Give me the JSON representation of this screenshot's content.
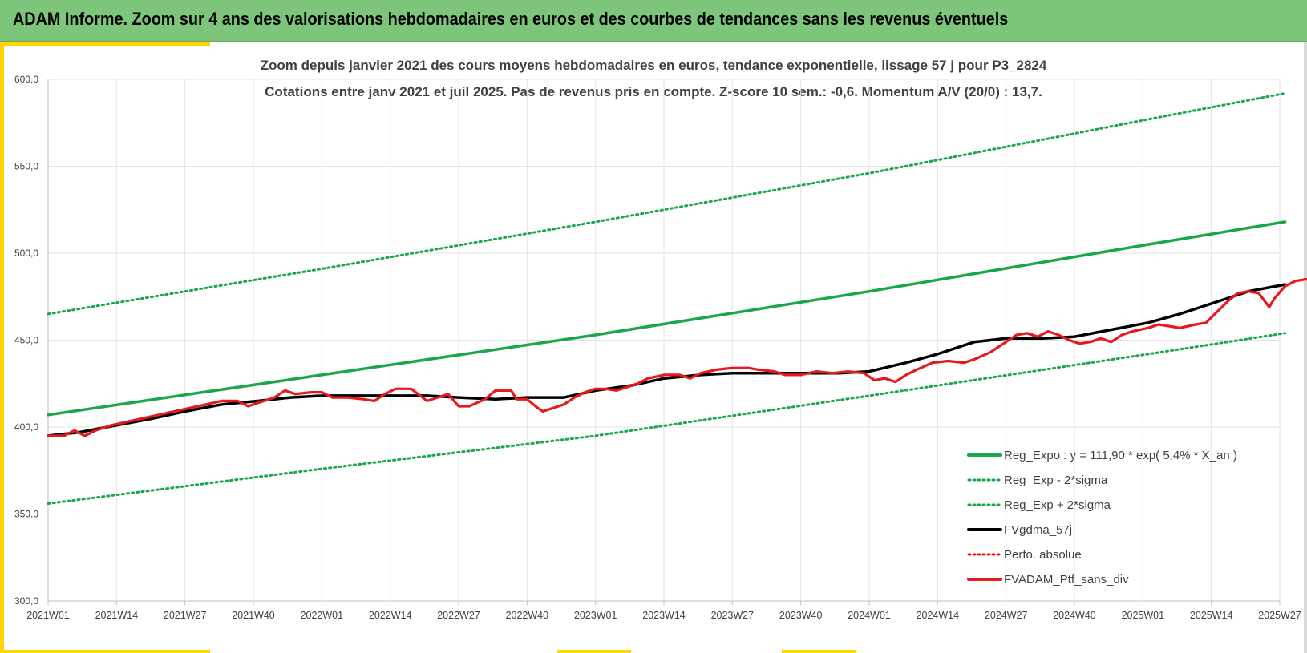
{
  "header": {
    "title": "ADAM Informe. Zoom sur 4 ans des valorisations hebdomadaires en euros et des courbes de tendances sans les revenus éventuels"
  },
  "colors": {
    "header_bg": "#7dc57a",
    "accent": "#ffd400",
    "green": "#1aa64a",
    "black": "#000000",
    "red": "#e8191d",
    "grid": "#e3e3e3"
  },
  "chart_data": {
    "type": "line",
    "title": "Zoom depuis janvier 2021 des cours moyens hebdomadaires  en euros, tendance exponentielle, lissage 57 j pour P3_2824",
    "subtitle": "Cotations entre janv 2021 et juil 2025. Pas de revenus pris en compte. Z-score 10 sem.: -0,6. Momentum A/V (20/0) : 13,7.",
    "xlabel": "",
    "ylabel": "",
    "ylim": [
      300,
      600
    ],
    "yticks": [
      "300,0",
      "350,0",
      "400,0",
      "450,0",
      "500,0",
      "550,0",
      "600,0"
    ],
    "x_tick_labels": [
      "2021W01",
      "2021W14",
      "2021W27",
      "2021W40",
      "2022W01",
      "2022W14",
      "2022W27",
      "2022W40",
      "2023W01",
      "2023W14",
      "2023W27",
      "2023W40",
      "2024W01",
      "2024W14",
      "2024W27",
      "2024W40",
      "2025W01",
      "2025W14",
      "2025W27"
    ],
    "grid": "vertical and horizontal",
    "legend_position": "bottom-right",
    "series": [
      {
        "name": "Reg_Expo : y = 111,90 * exp( 5,4% *  X_an )",
        "style": "solid",
        "color": "#1aa64a",
        "points": [
          [
            0,
            407
          ],
          [
            52,
            430
          ],
          [
            104,
            453
          ],
          [
            156,
            478
          ],
          [
            209,
            505
          ],
          [
            235,
            518
          ]
        ]
      },
      {
        "name": "Reg_Exp - 2*sigma",
        "style": "dotted",
        "color": "#1aa64a",
        "points": [
          [
            0,
            356
          ],
          [
            52,
            376
          ],
          [
            104,
            395
          ],
          [
            156,
            418
          ],
          [
            209,
            442
          ],
          [
            235,
            454
          ]
        ]
      },
      {
        "name": "Reg_Exp + 2*sigma",
        "style": "dotted",
        "color": "#1aa64a",
        "points": [
          [
            0,
            465
          ],
          [
            52,
            491
          ],
          [
            104,
            518
          ],
          [
            156,
            546
          ],
          [
            209,
            577
          ],
          [
            235,
            592
          ]
        ]
      },
      {
        "name": "FVgdma_57j",
        "style": "solid",
        "color": "#000000",
        "points": [
          [
            0,
            395
          ],
          [
            6,
            397
          ],
          [
            13,
            401
          ],
          [
            20,
            405
          ],
          [
            26,
            409
          ],
          [
            33,
            413
          ],
          [
            40,
            415
          ],
          [
            46,
            417
          ],
          [
            52,
            418
          ],
          [
            59,
            418
          ],
          [
            65,
            418
          ],
          [
            72,
            418
          ],
          [
            78,
            417
          ],
          [
            85,
            416
          ],
          [
            91,
            417
          ],
          [
            98,
            417
          ],
          [
            104,
            421
          ],
          [
            111,
            424
          ],
          [
            117,
            428
          ],
          [
            124,
            430
          ],
          [
            130,
            431
          ],
          [
            137,
            431
          ],
          [
            143,
            431
          ],
          [
            150,
            431
          ],
          [
            156,
            432
          ],
          [
            163,
            437
          ],
          [
            169,
            442
          ],
          [
            176,
            449
          ],
          [
            182,
            451
          ],
          [
            189,
            451
          ],
          [
            195,
            452
          ],
          [
            202,
            456
          ],
          [
            209,
            460
          ],
          [
            215,
            465
          ],
          [
            222,
            472
          ],
          [
            228,
            478
          ],
          [
            235,
            482
          ]
        ]
      },
      {
        "name": "Perfo. absolue",
        "style": "dotted",
        "color": "#e8191d",
        "points": []
      },
      {
        "name": "FVADAM_Ptf_sans_div",
        "style": "solid",
        "color": "#e8191d",
        "points": [
          [
            0,
            395
          ],
          [
            3,
            395
          ],
          [
            5,
            398
          ],
          [
            7,
            395
          ],
          [
            9,
            398
          ],
          [
            12,
            401
          ],
          [
            15,
            403
          ],
          [
            18,
            405
          ],
          [
            21,
            407
          ],
          [
            24,
            409
          ],
          [
            27,
            411
          ],
          [
            30,
            413
          ],
          [
            33,
            415
          ],
          [
            36,
            415
          ],
          [
            38,
            412
          ],
          [
            40,
            414
          ],
          [
            43,
            417
          ],
          [
            45,
            421
          ],
          [
            47,
            419
          ],
          [
            50,
            420
          ],
          [
            52,
            420
          ],
          [
            54,
            417
          ],
          [
            57,
            417
          ],
          [
            60,
            416
          ],
          [
            62,
            415
          ],
          [
            64,
            419
          ],
          [
            66,
            422
          ],
          [
            69,
            422
          ],
          [
            72,
            415
          ],
          [
            74,
            417
          ],
          [
            76,
            419
          ],
          [
            78,
            412
          ],
          [
            80,
            412
          ],
          [
            83,
            416
          ],
          [
            85,
            421
          ],
          [
            88,
            421
          ],
          [
            89,
            416
          ],
          [
            91,
            416
          ],
          [
            93,
            411
          ],
          [
            94,
            409
          ],
          [
            96,
            411
          ],
          [
            98,
            413
          ],
          [
            100,
            417
          ],
          [
            102,
            420
          ],
          [
            104,
            422
          ],
          [
            106,
            422
          ],
          [
            108,
            421
          ],
          [
            110,
            423
          ],
          [
            112,
            425
          ],
          [
            114,
            428
          ],
          [
            117,
            430
          ],
          [
            120,
            430
          ],
          [
            122,
            428
          ],
          [
            124,
            431
          ],
          [
            127,
            433
          ],
          [
            130,
            434
          ],
          [
            133,
            434
          ],
          [
            135,
            433
          ],
          [
            138,
            432
          ],
          [
            140,
            430
          ],
          [
            143,
            430
          ],
          [
            146,
            432
          ],
          [
            149,
            431
          ],
          [
            152,
            432
          ],
          [
            155,
            431
          ],
          [
            157,
            427
          ],
          [
            159,
            428
          ],
          [
            161,
            426
          ],
          [
            163,
            430
          ],
          [
            165,
            433
          ],
          [
            168,
            437
          ],
          [
            171,
            438
          ],
          [
            174,
            437
          ],
          [
            176,
            439
          ],
          [
            179,
            443
          ],
          [
            182,
            449
          ],
          [
            184,
            453
          ],
          [
            186,
            454
          ],
          [
            188,
            452
          ],
          [
            190,
            455
          ],
          [
            192,
            453
          ],
          [
            194,
            450
          ],
          [
            196,
            448
          ],
          [
            198,
            449
          ],
          [
            200,
            451
          ],
          [
            202,
            449
          ],
          [
            204,
            453
          ],
          [
            206,
            455
          ],
          [
            209,
            457
          ],
          [
            211,
            459
          ],
          [
            213,
            458
          ],
          [
            215,
            457
          ],
          [
            218,
            459
          ],
          [
            220,
            460
          ],
          [
            222,
            466
          ],
          [
            224,
            472
          ],
          [
            226,
            477
          ],
          [
            228,
            478
          ],
          [
            230,
            477
          ],
          [
            232,
            469
          ],
          [
            233,
            474
          ],
          [
            235,
            481
          ],
          [
            237,
            484
          ],
          [
            239,
            485
          ],
          [
            241,
            484
          ],
          [
            242,
            483
          ]
        ]
      }
    ]
  }
}
